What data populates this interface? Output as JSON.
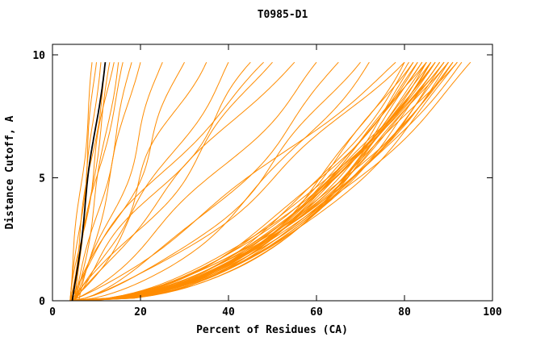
{
  "chart_data": {
    "type": "line",
    "title": "T0985-D1",
    "xlabel": "Percent of Residues (CA)",
    "ylabel": "Distance Cutoff, A",
    "xlim": [
      0,
      100
    ],
    "ylim": [
      0,
      10
    ],
    "x_ticks": [
      0,
      20,
      40,
      60,
      80,
      100
    ],
    "y_ticks": [
      0,
      5,
      10
    ],
    "grid": false,
    "legend": false,
    "curve_max_cutoff": 9.7,
    "colors": {
      "model": "#ff8c00",
      "reference": "#000000",
      "axis": "#000000",
      "background": "#ffffff"
    },
    "series_point_format": [
      "percent_at_cutoff_0",
      "percent_at_cutoff_max",
      "shape_exponent",
      "wiggle_amplitude"
    ],
    "model_series": [
      [
        5,
        80,
        0.42,
        1.5
      ],
      [
        5,
        81,
        0.45,
        1.2
      ],
      [
        6,
        82,
        0.4,
        1.0
      ],
      [
        4,
        82,
        0.48,
        1.8
      ],
      [
        5,
        83,
        0.44,
        0.8
      ],
      [
        6,
        83,
        0.5,
        1.5
      ],
      [
        5,
        84,
        0.42,
        1.2
      ],
      [
        6,
        84,
        0.46,
        1.0
      ],
      [
        5,
        85,
        0.43,
        1.4
      ],
      [
        7,
        85,
        0.47,
        0.9
      ],
      [
        5,
        85,
        0.52,
        1.6
      ],
      [
        6,
        86,
        0.41,
        1.1
      ],
      [
        5,
        86,
        0.45,
        1.3
      ],
      [
        6,
        86,
        0.49,
        0.7
      ],
      [
        5,
        87,
        0.44,
        1.5
      ],
      [
        7,
        87,
        0.48,
        1.0
      ],
      [
        6,
        87,
        0.53,
        1.2
      ],
      [
        5,
        88,
        0.42,
        0.9
      ],
      [
        6,
        88,
        0.46,
        1.4
      ],
      [
        5,
        88,
        0.5,
        1.1
      ],
      [
        6,
        89,
        0.44,
        1.3
      ],
      [
        5,
        89,
        0.48,
        0.8
      ],
      [
        7,
        89,
        0.55,
        1.5
      ],
      [
        6,
        90,
        0.43,
        1.0
      ],
      [
        5,
        90,
        0.47,
        1.2
      ],
      [
        6,
        90,
        0.51,
        1.6
      ],
      [
        5,
        91,
        0.45,
        0.9
      ],
      [
        6,
        91,
        0.5,
        1.3
      ],
      [
        7,
        92,
        0.46,
        1.1
      ],
      [
        5,
        92,
        0.54,
        1.4
      ],
      [
        6,
        93,
        0.48,
        1.0
      ],
      [
        5,
        95,
        0.5,
        1.2
      ],
      [
        4,
        30,
        0.9,
        2.0
      ],
      [
        5,
        35,
        1.0,
        2.5
      ],
      [
        4,
        40,
        0.85,
        2.0
      ],
      [
        5,
        45,
        1.0,
        3.0
      ],
      [
        4,
        50,
        0.95,
        2.5
      ],
      [
        5,
        55,
        1.1,
        2.0
      ],
      [
        4,
        60,
        0.8,
        2.5
      ],
      [
        5,
        65,
        0.7,
        2.0
      ],
      [
        4,
        70,
        0.65,
        2.5
      ],
      [
        5,
        72,
        0.6,
        2.0
      ],
      [
        4,
        48,
        1.2,
        2.0
      ],
      [
        5,
        25,
        0.9,
        1.5
      ],
      [
        5,
        80,
        0.75,
        2.5
      ],
      [
        4,
        78,
        0.85,
        2.0
      ],
      [
        4,
        9,
        1.0,
        0.5
      ],
      [
        4,
        10,
        0.95,
        0.6
      ],
      [
        5,
        11,
        1.05,
        0.5
      ],
      [
        4,
        12,
        0.9,
        0.7
      ],
      [
        5,
        13,
        1.0,
        0.5
      ],
      [
        4,
        14,
        1.1,
        0.8
      ],
      [
        5,
        15,
        0.85,
        0.6
      ],
      [
        4,
        16,
        1.0,
        0.7
      ],
      [
        5,
        18,
        0.95,
        0.9
      ],
      [
        6,
        20,
        1.05,
        0.8
      ]
    ],
    "reference_series": [
      [
        4.5,
        12,
        1.0,
        0.4
      ]
    ]
  }
}
